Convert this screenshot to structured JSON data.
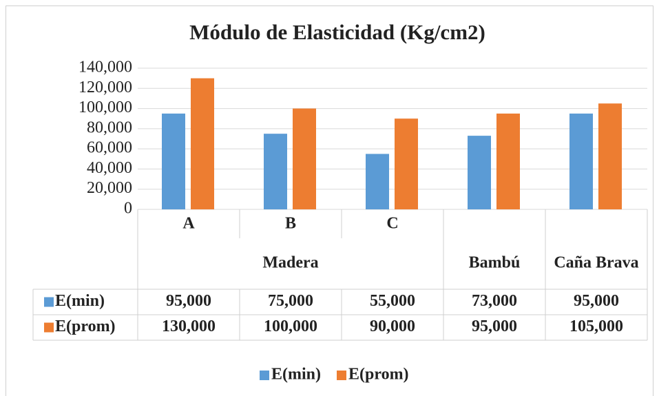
{
  "chart_data": {
    "type": "bar",
    "title": "Módulo de Elasticidad (Kg/cm2)",
    "groups": [
      {
        "name": "Madera",
        "categories": [
          "A",
          "B",
          "C"
        ]
      },
      {
        "name": "Bambú",
        "categories": [
          null
        ]
      },
      {
        "name": "Caña Brava",
        "categories": [
          null
        ]
      }
    ],
    "series": [
      {
        "name": "E(min)",
        "color": "#5b9bd5",
        "values": [
          95000,
          75000,
          55000,
          73000,
          95000
        ],
        "value_labels": [
          "95,000",
          "75,000",
          "55,000",
          "73,000",
          "95,000"
        ]
      },
      {
        "name": "E(prom)",
        "color": "#ed7d31",
        "values": [
          130000,
          100000,
          90000,
          95000,
          105000
        ],
        "value_labels": [
          "130,000",
          "100,000",
          "90,000",
          "95,000",
          "105,000"
        ]
      }
    ],
    "ylim": [
      0,
      140000
    ],
    "yticks": [
      0,
      {
        "value": 20000,
        "label": "20,000"
      },
      {
        "value": 40000,
        "label": "40,000"
      },
      {
        "value": 60000,
        "label": "60,000"
      },
      {
        "value": 80000,
        "label": "80,000"
      },
      {
        "value": 100000,
        "label": "100,000"
      },
      {
        "value": 120000,
        "label": "120,000"
      },
      {
        "value": 140000,
        "label": "140,000"
      }
    ],
    "grid": true,
    "legend": "bottom"
  }
}
